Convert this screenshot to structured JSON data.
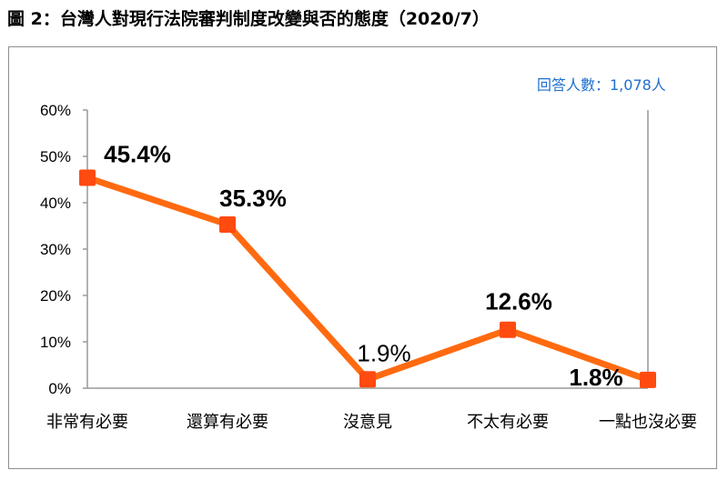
{
  "title": "圖 2：台灣人對現行法院審判制度改變與否的態度（2020/7）",
  "respondents": "回答人數：1,078人",
  "colors": {
    "line": "#ff6a10",
    "marker": "#ff4a10",
    "axis": "#999999",
    "grid": "#d9d9d9"
  },
  "chart_data": {
    "type": "line",
    "categories": [
      "非常有必要",
      "還算有必要",
      "沒意見",
      "不太有必要",
      "一點也沒必要"
    ],
    "values": [
      45.4,
      35.3,
      1.9,
      12.6,
      1.8
    ],
    "value_labels": [
      "45.4%",
      "35.3%",
      "1.9%",
      "12.6%",
      "1.8%"
    ],
    "y_ticks": [
      "0%",
      "10%",
      "20%",
      "30%",
      "40%",
      "50%",
      "60%"
    ],
    "ylim": [
      0,
      60
    ],
    "grid": false,
    "legend": "none"
  }
}
